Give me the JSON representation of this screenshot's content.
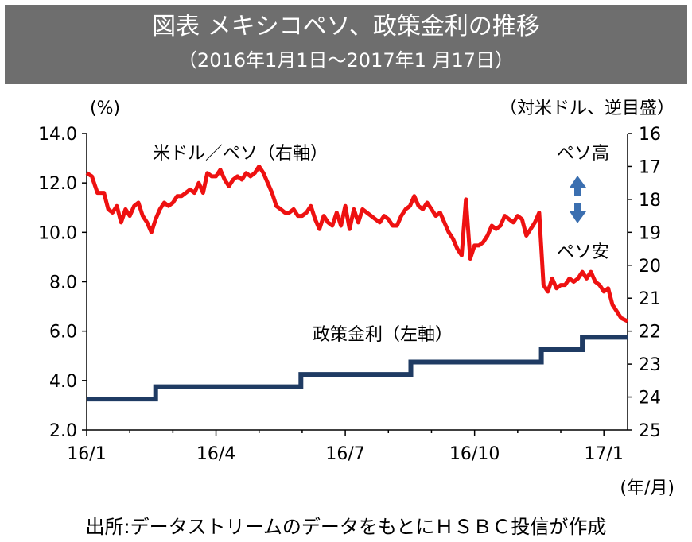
{
  "header": {
    "title": "図表 メキシコペソ、政策金利の推移",
    "subtitle": "（2016年1月1日～2017年1 月17日）"
  },
  "source": "出所:データストリームのデータをもとにＨＳＢＣ投信が作成",
  "colors": {
    "header_bg": "#6e6e6e",
    "peso_line": "#ee1111",
    "rate_line": "#1f3b63",
    "arrow": "#3b6fb0"
  },
  "chart_data": {
    "type": "line",
    "left_axis": {
      "unit_label": "(%)",
      "min": 2.0,
      "max": 14.0,
      "ticks": [
        "14.0",
        "12.0",
        "10.0",
        "8.0",
        "6.0",
        "4.0",
        "2.0"
      ]
    },
    "right_axis": {
      "unit_label": "（対米ドル、逆目盛）",
      "min": 16,
      "max": 25,
      "inverted": true,
      "ticks": [
        "16",
        "17",
        "18",
        "19",
        "20",
        "21",
        "22",
        "23",
        "24",
        "25"
      ]
    },
    "x_axis": {
      "ticks": [
        "16/1",
        "16/4",
        "16/7",
        "16/10",
        "17/1"
      ],
      "unit_label": "(年/月)",
      "range_months": [
        0,
        12.55
      ]
    },
    "annotations": {
      "high": "ペソ高",
      "low": "ペソ安"
    },
    "series": [
      {
        "name": "米ドル／ペソ（右軸）",
        "axis": "right",
        "points": [
          [
            0.0,
            17.2
          ],
          [
            0.12,
            17.3
          ],
          [
            0.25,
            17.8
          ],
          [
            0.4,
            17.8
          ],
          [
            0.5,
            18.3
          ],
          [
            0.6,
            18.4
          ],
          [
            0.7,
            18.2
          ],
          [
            0.8,
            18.7
          ],
          [
            0.9,
            18.3
          ],
          [
            1.0,
            18.5
          ],
          [
            1.1,
            18.2
          ],
          [
            1.2,
            18.1
          ],
          [
            1.3,
            18.5
          ],
          [
            1.4,
            18.7
          ],
          [
            1.5,
            19.0
          ],
          [
            1.6,
            18.6
          ],
          [
            1.7,
            18.3
          ],
          [
            1.8,
            18.1
          ],
          [
            1.9,
            18.2
          ],
          [
            2.0,
            18.1
          ],
          [
            2.1,
            17.9
          ],
          [
            2.2,
            17.9
          ],
          [
            2.3,
            17.8
          ],
          [
            2.4,
            17.7
          ],
          [
            2.5,
            17.8
          ],
          [
            2.6,
            17.5
          ],
          [
            2.7,
            17.8
          ],
          [
            2.8,
            17.2
          ],
          [
            2.9,
            17.3
          ],
          [
            3.0,
            17.3
          ],
          [
            3.1,
            17.1
          ],
          [
            3.2,
            17.4
          ],
          [
            3.3,
            17.6
          ],
          [
            3.4,
            17.4
          ],
          [
            3.5,
            17.3
          ],
          [
            3.6,
            17.4
          ],
          [
            3.7,
            17.2
          ],
          [
            3.8,
            17.3
          ],
          [
            3.9,
            17.2
          ],
          [
            4.0,
            17.0
          ],
          [
            4.1,
            17.2
          ],
          [
            4.2,
            17.5
          ],
          [
            4.3,
            17.8
          ],
          [
            4.4,
            18.2
          ],
          [
            4.5,
            18.3
          ],
          [
            4.6,
            18.4
          ],
          [
            4.7,
            18.4
          ],
          [
            4.8,
            18.3
          ],
          [
            4.9,
            18.5
          ],
          [
            5.0,
            18.5
          ],
          [
            5.1,
            18.4
          ],
          [
            5.2,
            18.2
          ],
          [
            5.3,
            18.6
          ],
          [
            5.4,
            18.9
          ],
          [
            5.5,
            18.5
          ],
          [
            5.6,
            18.7
          ],
          [
            5.7,
            18.8
          ],
          [
            5.8,
            18.4
          ],
          [
            5.9,
            18.8
          ],
          [
            6.0,
            18.2
          ],
          [
            6.1,
            18.9
          ],
          [
            6.2,
            18.3
          ],
          [
            6.3,
            18.7
          ],
          [
            6.4,
            18.3
          ],
          [
            6.5,
            18.4
          ],
          [
            6.6,
            18.5
          ],
          [
            6.7,
            18.6
          ],
          [
            6.8,
            18.7
          ],
          [
            6.9,
            18.5
          ],
          [
            7.0,
            18.6
          ],
          [
            7.1,
            18.8
          ],
          [
            7.2,
            18.8
          ],
          [
            7.3,
            18.5
          ],
          [
            7.4,
            18.3
          ],
          [
            7.5,
            18.2
          ],
          [
            7.6,
            17.9
          ],
          [
            7.7,
            18.2
          ],
          [
            7.8,
            18.3
          ],
          [
            7.9,
            18.1
          ],
          [
            8.0,
            18.3
          ],
          [
            8.1,
            18.5
          ],
          [
            8.2,
            18.4
          ],
          [
            8.3,
            18.7
          ],
          [
            8.4,
            19.0
          ],
          [
            8.5,
            19.2
          ],
          [
            8.6,
            19.5
          ],
          [
            8.7,
            19.7
          ],
          [
            8.8,
            18.0
          ],
          [
            8.9,
            19.8
          ],
          [
            9.0,
            19.4
          ],
          [
            9.1,
            19.4
          ],
          [
            9.2,
            19.3
          ],
          [
            9.3,
            19.1
          ],
          [
            9.4,
            18.8
          ],
          [
            9.5,
            18.9
          ],
          [
            9.6,
            18.8
          ],
          [
            9.7,
            18.5
          ],
          [
            9.8,
            18.6
          ],
          [
            9.9,
            18.7
          ],
          [
            10.0,
            18.5
          ],
          [
            10.1,
            18.6
          ],
          [
            10.2,
            19.1
          ],
          [
            10.3,
            18.9
          ],
          [
            10.4,
            18.7
          ],
          [
            10.5,
            18.4
          ],
          [
            10.6,
            20.6
          ],
          [
            10.7,
            20.8
          ],
          [
            10.8,
            20.4
          ],
          [
            10.9,
            20.7
          ],
          [
            11.0,
            20.6
          ],
          [
            11.1,
            20.6
          ],
          [
            11.2,
            20.4
          ],
          [
            11.3,
            20.5
          ],
          [
            11.4,
            20.4
          ],
          [
            11.5,
            20.2
          ],
          [
            11.6,
            20.4
          ],
          [
            11.7,
            20.2
          ],
          [
            11.8,
            20.5
          ],
          [
            11.9,
            20.6
          ],
          [
            12.0,
            20.8
          ],
          [
            12.1,
            20.7
          ],
          [
            12.2,
            21.2
          ],
          [
            12.3,
            21.4
          ],
          [
            12.4,
            21.6
          ],
          [
            12.55,
            21.7
          ]
        ]
      },
      {
        "name": "政策金利（左軸）",
        "axis": "left",
        "points": [
          [
            0.0,
            3.25
          ],
          [
            1.6,
            3.25
          ],
          [
            1.6,
            3.75
          ],
          [
            4.97,
            3.75
          ],
          [
            4.97,
            4.25
          ],
          [
            7.52,
            4.25
          ],
          [
            7.52,
            4.75
          ],
          [
            10.55,
            4.75
          ],
          [
            10.55,
            5.25
          ],
          [
            11.5,
            5.25
          ],
          [
            11.5,
            5.75
          ],
          [
            12.55,
            5.75
          ]
        ]
      }
    ]
  }
}
